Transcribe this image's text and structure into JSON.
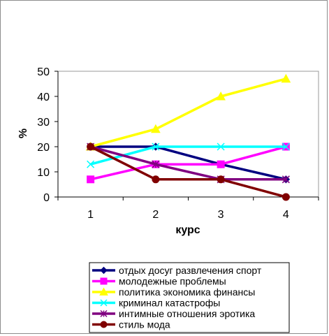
{
  "chart_data": {
    "type": "line",
    "categories": [
      "1",
      "2",
      "3",
      "4"
    ],
    "xlabel": "курс",
    "ylabel": "%",
    "ylim": [
      0,
      50
    ],
    "yticks": [
      "0",
      "10",
      "20",
      "30",
      "40",
      "50"
    ],
    "grid": false,
    "legend_position": "bottom",
    "series": [
      {
        "name": "отдых досуг развлечения спорт",
        "values": [
          20,
          20,
          13,
          7
        ],
        "color": "#000080",
        "marker": "diamond"
      },
      {
        "name": "молодежные проблемы",
        "values": [
          7,
          13,
          13,
          20
        ],
        "color": "#ff00ff",
        "marker": "square"
      },
      {
        "name": "политика экономика финансы",
        "values": [
          20,
          27,
          40,
          47
        ],
        "color": "#ffff00",
        "marker": "triangle"
      },
      {
        "name": "криминал катастрофы",
        "values": [
          13,
          20,
          20,
          20
        ],
        "color": "#00ffff",
        "marker": "x"
      },
      {
        "name": "интимные отношения эротика",
        "values": [
          20,
          13,
          7,
          7
        ],
        "color": "#800080",
        "marker": "star"
      },
      {
        "name": "стиль мода",
        "values": [
          20,
          7,
          7,
          0
        ],
        "color": "#800000",
        "marker": "circle"
      }
    ]
  }
}
